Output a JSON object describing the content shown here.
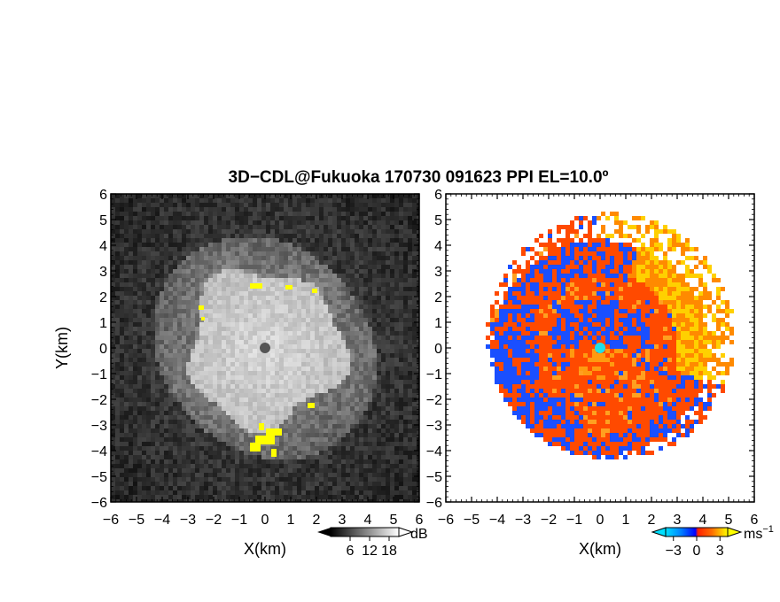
{
  "title": "3D−CDL@Fukuoka 170730 091623 PPI EL=10.0º",
  "chart_data": [
    {
      "type": "heatmap",
      "quantity": "SNR",
      "xlabel": "X(km)",
      "ylabel": "Y(km)",
      "xlim": [
        -6,
        6
      ],
      "ylim": [
        -6,
        6
      ],
      "x_ticks": [
        "−6",
        "−5",
        "−4",
        "−3",
        "−2",
        "−1",
        "0",
        "1",
        "2",
        "3",
        "4",
        "5",
        "6"
      ],
      "y_ticks": [
        "6",
        "5",
        "4",
        "3",
        "2",
        "1",
        "0",
        "−1",
        "−2",
        "−3",
        "−4",
        "−5",
        "−6"
      ],
      "colorbar": {
        "unit": "dB",
        "ticks": [
          "6",
          "12",
          "18"
        ],
        "range": [
          0,
          21
        ]
      },
      "description_values": {
        "inner_bright_radius_km": 3.0,
        "outer_ring_radius_km": 4.3
      }
    },
    {
      "type": "heatmap",
      "quantity": "Doppler velocity",
      "xlabel": "X(km)",
      "xlim": [
        -6,
        6
      ],
      "ylim": [
        -6,
        6
      ],
      "x_ticks": [
        "−6",
        "−5",
        "−4",
        "−3",
        "−2",
        "−1",
        "0",
        "1",
        "2",
        "3",
        "4",
        "5",
        "6"
      ],
      "y_ticks": [
        "6",
        "5",
        "4",
        "3",
        "2",
        "1",
        "0",
        "−1",
        "−2",
        "−3",
        "−4",
        "−5",
        "−6"
      ],
      "colorbar": {
        "unit": "ms",
        "unit_sup": "−1",
        "ticks": [
          "−3",
          "0",
          "3"
        ],
        "range": [
          -4,
          4
        ]
      }
    }
  ],
  "colors": {
    "negative": "#1a4fff",
    "positive": "#ff4a00",
    "strong_positive": "#ffd000",
    "center_marker": "#20e0e8",
    "highlight": "#ffff00"
  }
}
